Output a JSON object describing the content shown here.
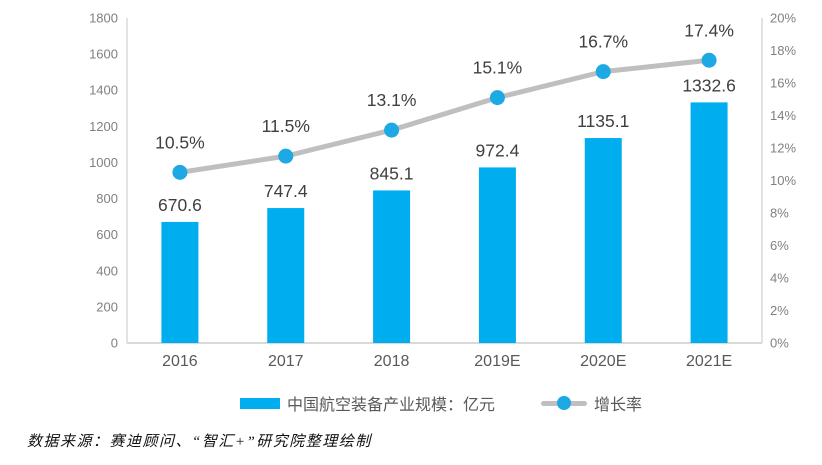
{
  "chart_data": {
    "type": "bar",
    "categories": [
      "2016",
      "2017",
      "2018",
      "2019E",
      "2020E",
      "2021E"
    ],
    "series": [
      {
        "name": "中国航空装备产业规模：亿元",
        "type": "bar",
        "axis": "left",
        "values": [
          670.6,
          747.4,
          845.1,
          972.4,
          1135.1,
          1332.6
        ],
        "labels": [
          "670.6",
          "747.4",
          "845.1",
          "972.4",
          "1135.1",
          "1332.6"
        ]
      },
      {
        "name": "增长率",
        "type": "line",
        "axis": "right",
        "values": [
          10.5,
          11.5,
          13.1,
          15.1,
          16.7,
          17.4
        ],
        "labels": [
          "10.5%",
          "11.5%",
          "13.1%",
          "15.1%",
          "16.7%",
          "17.4%"
        ]
      }
    ],
    "title": "",
    "xlabel": "",
    "ylabel": "",
    "left_axis": {
      "min": 0,
      "max": 1800,
      "step": 200,
      "ticks": [
        "0",
        "200",
        "400",
        "600",
        "800",
        "1000",
        "1200",
        "1400",
        "1600",
        "1800"
      ]
    },
    "right_axis": {
      "min": 0,
      "max": 20,
      "step": 2,
      "ticks": [
        "0%",
        "2%",
        "4%",
        "6%",
        "8%",
        "10%",
        "12%",
        "14%",
        "16%",
        "18%",
        "20%"
      ]
    },
    "grid": false,
    "legend_position": "bottom"
  },
  "legend": {
    "bar_label": "中国航空装备产业规模：亿元",
    "line_label": "增长率"
  },
  "footer": {
    "source_text": "数据来源：赛迪顾问、“智汇+”研究院整理绘制"
  },
  "colors": {
    "bar": "#00AEEF",
    "line": "#BFBFBF",
    "marker": "#1CA9E4",
    "axis_line": "#D9D9D9",
    "tick_text": "#808080",
    "category_text": "#595959",
    "data_label_text": "#404040",
    "legend_text": "#595959",
    "background": "#FFFFFF"
  }
}
